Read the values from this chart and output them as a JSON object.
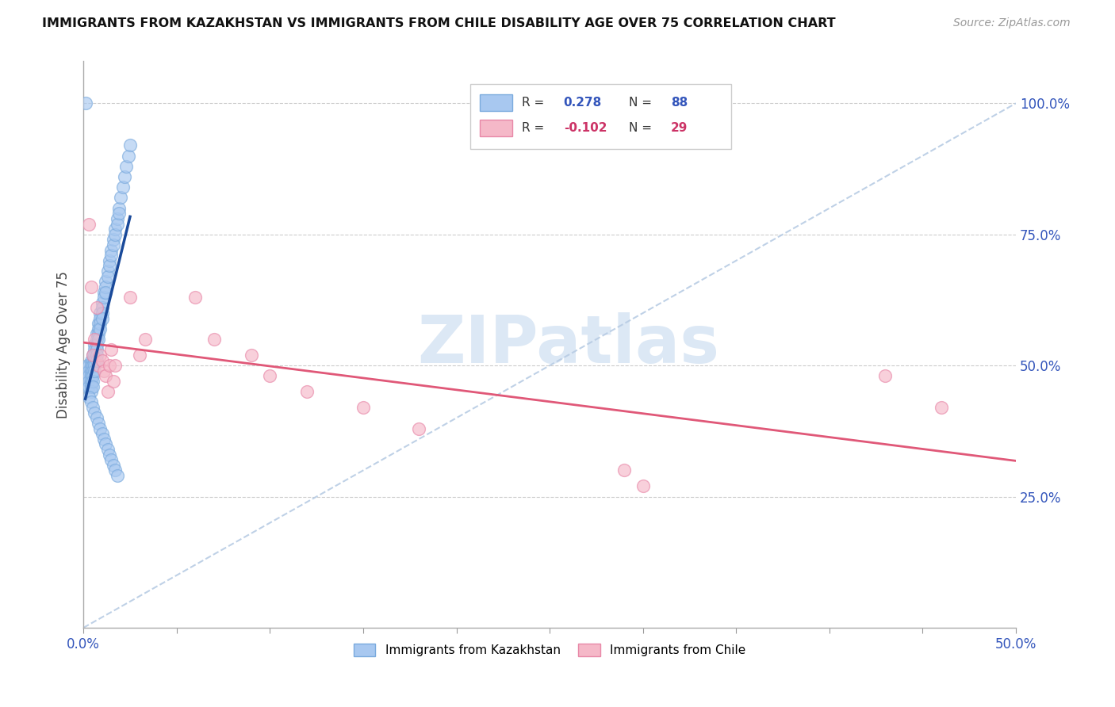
{
  "title": "IMMIGRANTS FROM KAZAKHSTAN VS IMMIGRANTS FROM CHILE DISABILITY AGE OVER 75 CORRELATION CHART",
  "source": "Source: ZipAtlas.com",
  "ylabel": "Disability Age Over 75",
  "xlim": [
    0.0,
    0.5
  ],
  "ylim": [
    0.0,
    1.08
  ],
  "xtick_vals": [
    0.0,
    0.05,
    0.1,
    0.15,
    0.2,
    0.25,
    0.3,
    0.35,
    0.4,
    0.45,
    0.5
  ],
  "xtick_show": [
    0.0,
    0.5
  ],
  "xtick_minor": [
    0.05,
    0.1,
    0.15,
    0.2,
    0.25,
    0.3,
    0.35,
    0.4,
    0.45
  ],
  "ytick_vals": [
    0.25,
    0.5,
    0.75,
    1.0
  ],
  "ytick_labels": [
    "25.0%",
    "50.0%",
    "75.0%",
    "100.0%"
  ],
  "legend_blue_r": "0.278",
  "legend_blue_n": "88",
  "legend_pink_r": "-0.102",
  "legend_pink_n": "29",
  "blue_color": "#a8c8f0",
  "blue_edge_color": "#7aaadd",
  "pink_color": "#f5b8c8",
  "pink_edge_color": "#e888a8",
  "blue_line_color": "#1a4a9a",
  "pink_line_color": "#e05878",
  "diagonal_color": "#b8cce4",
  "kaz_x": [
    0.002,
    0.002,
    0.002,
    0.003,
    0.003,
    0.003,
    0.003,
    0.003,
    0.004,
    0.004,
    0.004,
    0.004,
    0.004,
    0.004,
    0.004,
    0.005,
    0.005,
    0.005,
    0.005,
    0.005,
    0.005,
    0.005,
    0.006,
    0.006,
    0.006,
    0.006,
    0.006,
    0.006,
    0.007,
    0.007,
    0.007,
    0.007,
    0.007,
    0.007,
    0.008,
    0.008,
    0.008,
    0.008,
    0.009,
    0.009,
    0.009,
    0.009,
    0.01,
    0.01,
    0.01,
    0.01,
    0.011,
    0.011,
    0.012,
    0.012,
    0.012,
    0.013,
    0.013,
    0.014,
    0.014,
    0.015,
    0.015,
    0.016,
    0.016,
    0.017,
    0.017,
    0.018,
    0.018,
    0.019,
    0.019,
    0.02,
    0.021,
    0.022,
    0.023,
    0.024,
    0.025,
    0.003,
    0.004,
    0.005,
    0.006,
    0.007,
    0.008,
    0.009,
    0.01,
    0.011,
    0.012,
    0.013,
    0.014,
    0.015,
    0.016,
    0.017,
    0.018,
    0.001
  ],
  "kaz_y": [
    0.5,
    0.48,
    0.46,
    0.5,
    0.49,
    0.48,
    0.47,
    0.46,
    0.51,
    0.5,
    0.49,
    0.48,
    0.47,
    0.46,
    0.45,
    0.52,
    0.51,
    0.5,
    0.49,
    0.48,
    0.47,
    0.46,
    0.54,
    0.53,
    0.52,
    0.51,
    0.5,
    0.49,
    0.56,
    0.55,
    0.54,
    0.53,
    0.52,
    0.51,
    0.58,
    0.57,
    0.56,
    0.55,
    0.6,
    0.59,
    0.58,
    0.57,
    0.62,
    0.61,
    0.6,
    0.59,
    0.64,
    0.63,
    0.66,
    0.65,
    0.64,
    0.68,
    0.67,
    0.7,
    0.69,
    0.72,
    0.71,
    0.74,
    0.73,
    0.76,
    0.75,
    0.78,
    0.77,
    0.8,
    0.79,
    0.82,
    0.84,
    0.86,
    0.88,
    0.9,
    0.92,
    0.44,
    0.43,
    0.42,
    0.41,
    0.4,
    0.39,
    0.38,
    0.37,
    0.36,
    0.35,
    0.34,
    0.33,
    0.32,
    0.31,
    0.3,
    0.29,
    1.0
  ],
  "chile_x": [
    0.003,
    0.004,
    0.005,
    0.006,
    0.007,
    0.008,
    0.009,
    0.01,
    0.011,
    0.012,
    0.013,
    0.014,
    0.015,
    0.016,
    0.017,
    0.025,
    0.03,
    0.033,
    0.06,
    0.07,
    0.09,
    0.1,
    0.12,
    0.15,
    0.18,
    0.29,
    0.3,
    0.43,
    0.46
  ],
  "chile_y": [
    0.77,
    0.65,
    0.52,
    0.55,
    0.61,
    0.5,
    0.52,
    0.51,
    0.49,
    0.48,
    0.45,
    0.5,
    0.53,
    0.47,
    0.5,
    0.63,
    0.52,
    0.55,
    0.63,
    0.55,
    0.52,
    0.48,
    0.45,
    0.42,
    0.38,
    0.3,
    0.27,
    0.48,
    0.42
  ],
  "watermark_text": "ZIPatlas",
  "watermark_color": "#dce8f5"
}
